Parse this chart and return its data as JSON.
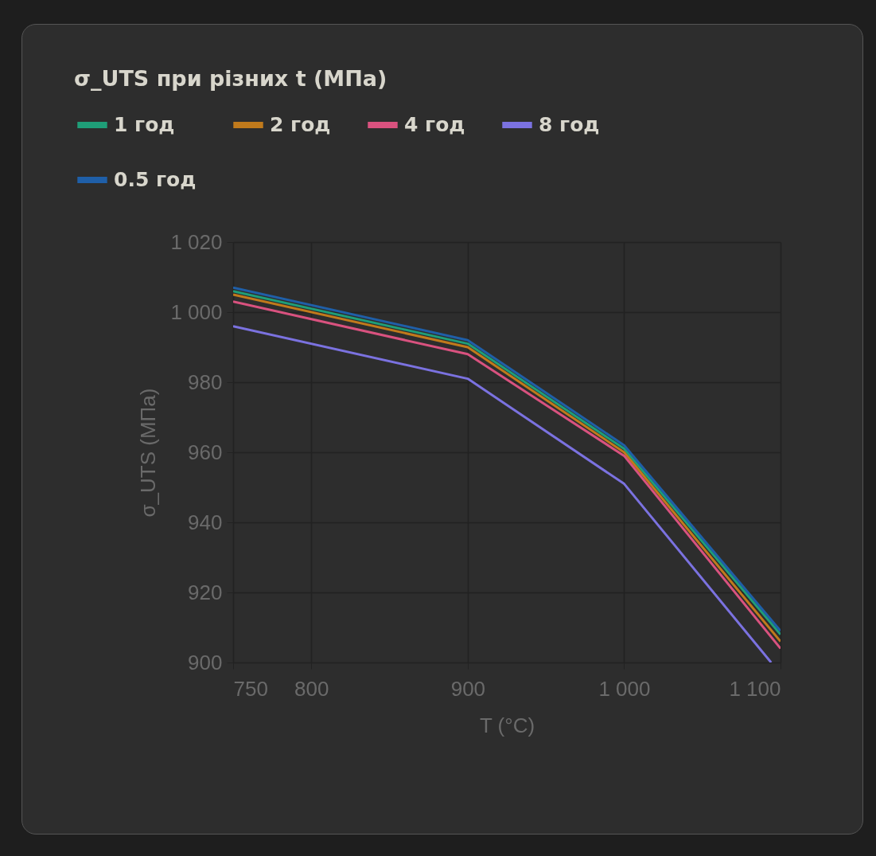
{
  "chart_data": {
    "type": "line",
    "title": "σ_UTS при різних t (МПа)",
    "xlabel": "T (°C)",
    "ylabel": "σ_UTS (МПа)",
    "x": [
      750,
      900,
      1000,
      1100
    ],
    "series": [
      {
        "name": "1 год",
        "color": "#1f9e78",
        "values": [
          1006,
          991,
          961,
          908
        ]
      },
      {
        "name": "2 год",
        "color": "#c07a1c",
        "values": [
          1005,
          990,
          960,
          906
        ]
      },
      {
        "name": "4 год",
        "color": "#d9527f",
        "values": [
          1003,
          988,
          959,
          904
        ]
      },
      {
        "name": "8 год",
        "color": "#7b72e0",
        "x": [
          750,
          900,
          1000,
          1094
        ],
        "values": [
          996,
          981,
          951,
          900
        ]
      },
      {
        "name": "0.5 год",
        "color": "#1f5fa8",
        "values": [
          1007,
          992,
          962,
          909
        ]
      }
    ],
    "xlim": [
      750,
      1100
    ],
    "xticks": [
      750,
      800,
      900,
      {
        "value": 1000,
        "label": "1 000"
      },
      {
        "value": 1100,
        "label": "1 100"
      }
    ],
    "ylim": [
      900,
      1020
    ],
    "yticks": [
      900,
      920,
      940,
      960,
      980,
      {
        "value": 1000,
        "label": "1 000"
      },
      {
        "value": 1020,
        "label": "1 020"
      }
    ],
    "grid": true,
    "legend": "top left",
    "marker": "none",
    "line_style": "solid"
  }
}
